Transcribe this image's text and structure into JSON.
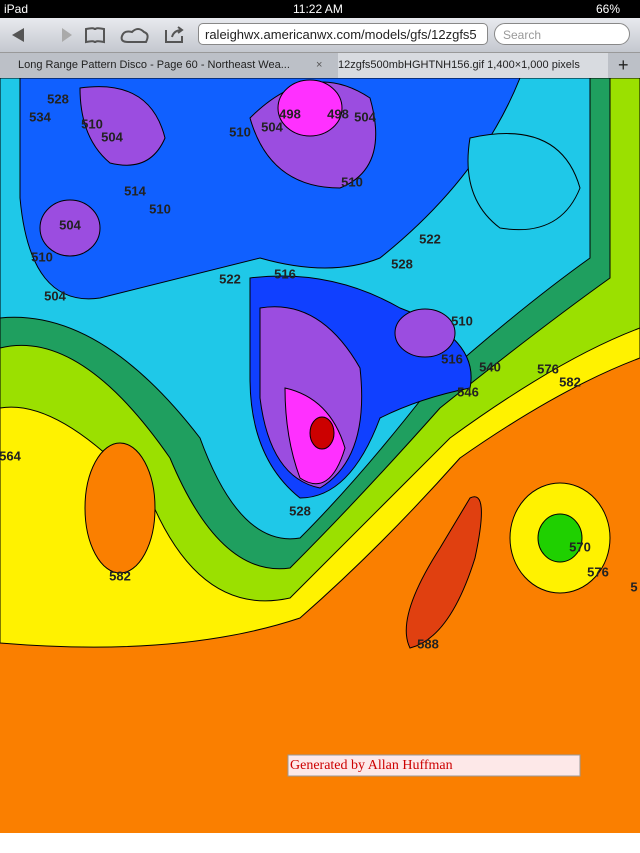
{
  "status_bar": {
    "device": "iPad",
    "time": "11:22 AM",
    "battery": "66%"
  },
  "toolbar": {
    "url": "raleighwx.americanwx.com/models/gfs/12zgfs5",
    "search_placeholder": "Search"
  },
  "tabs": [
    "Long Range Pattern Disco - Page 60 - Northeast Wea...",
    "12zgfs500mbHGHTNH156.gif 1,400×1,000 pixels"
  ],
  "map": {
    "contour_labels": [
      528,
      534,
      510,
      504,
      498,
      498,
      504,
      510,
      504,
      510,
      514,
      510,
      504,
      510,
      504,
      522,
      516,
      528,
      522,
      510,
      516,
      540,
      546,
      576,
      582,
      564,
      582,
      570,
      576,
      5,
      588,
      528
    ],
    "credit": "Generated by Allan Huffman"
  }
}
